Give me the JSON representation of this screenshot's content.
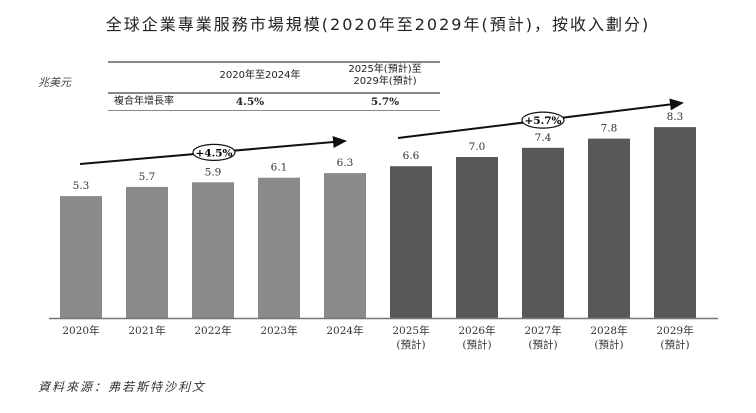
{
  "chart_data": {
    "type": "bar",
    "title": "全球企業專業服務市場規模(2020年至2029年(預計)，按收入劃分)",
    "ylabel": "兆美元",
    "categories": [
      "2020年",
      "2021年",
      "2022年",
      "2023年",
      "2024年",
      "2025年",
      "2026年",
      "2027年",
      "2028年",
      "2029年"
    ],
    "category_sublabels": [
      "",
      "",
      "",
      "",
      "",
      "(預計)",
      "(預計)",
      "(預計)",
      "(預計)",
      "(預計)"
    ],
    "values": [
      5.3,
      5.7,
      5.9,
      6.1,
      6.3,
      6.6,
      7.0,
      7.4,
      7.8,
      8.3
    ],
    "value_labels": [
      "5.3",
      "5.7",
      "5.9",
      "6.1",
      "6.3",
      "6.6",
      "7.0",
      "7.4",
      "7.8",
      "8.3"
    ],
    "ylim": [
      0,
      8.3
    ],
    "grid": false,
    "annotations": [
      {
        "label": "+4.5%",
        "from": "2020年",
        "to": "2024年"
      },
      {
        "label": "+5.7%",
        "from": "2025年",
        "to": "2029年"
      }
    ],
    "colors": {
      "historical": "#8a8a8c",
      "forecast": "#58585a"
    }
  },
  "table": {
    "col1_header": "2020年至2024年",
    "col2_header_line1": "2025年(預計)至",
    "col2_header_line2": "2029年(預計)",
    "row_label": "複合年增長率",
    "col1_value": "4.5%",
    "col2_value": "5.7%"
  },
  "source": "資料來源：弗若斯特沙利文"
}
